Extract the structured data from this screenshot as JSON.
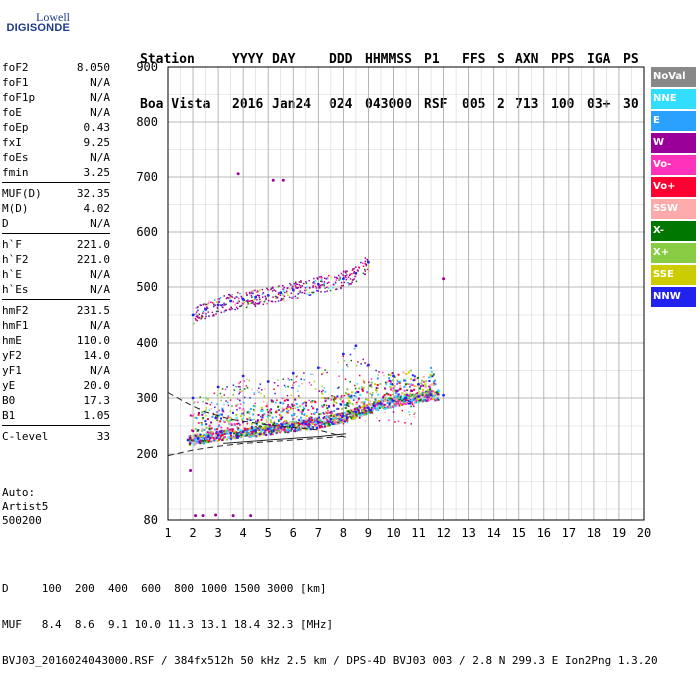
{
  "logo": {
    "top": "Lowell",
    "bottom": "DIGISONDE"
  },
  "header": {
    "row1": [
      "Station",
      "YYYY",
      "DAY",
      "DDD",
      "HHMMSS",
      "P1",
      "FFS",
      "S",
      "AXN",
      "PPS",
      "IGA",
      "PS"
    ],
    "row2": [
      "Boa Vista",
      "2016",
      "Jan24",
      "024",
      "043000",
      "RSF",
      "005",
      "2",
      "713",
      "100",
      "03+",
      "30"
    ]
  },
  "params": {
    "group1": [
      {
        "name": "foF2",
        "value": "8.050"
      },
      {
        "name": "foF1",
        "value": "N/A"
      },
      {
        "name": "foF1p",
        "value": "N/A"
      },
      {
        "name": "foE",
        "value": "N/A"
      },
      {
        "name": "foEp",
        "value": "0.43"
      },
      {
        "name": "fxI",
        "value": "9.25"
      },
      {
        "name": "foEs",
        "value": "N/A"
      },
      {
        "name": "fmin",
        "value": "3.25"
      }
    ],
    "group2": [
      {
        "name": "MUF(D)",
        "value": "32.35"
      },
      {
        "name": "M(D)",
        "value": "4.02"
      },
      {
        "name": "D",
        "value": "N/A"
      }
    ],
    "group3": [
      {
        "name": "h`F",
        "value": "221.0"
      },
      {
        "name": "h`F2",
        "value": "221.0"
      },
      {
        "name": "h`E",
        "value": "N/A"
      },
      {
        "name": "h`Es",
        "value": "N/A"
      }
    ],
    "group4": [
      {
        "name": "hmF2",
        "value": "231.5"
      },
      {
        "name": "hmF1",
        "value": "N/A"
      },
      {
        "name": "hmE",
        "value": "110.0"
      },
      {
        "name": "yF2",
        "value": "14.0"
      },
      {
        "name": "yF1",
        "value": "N/A"
      },
      {
        "name": "yE",
        "value": "20.0"
      },
      {
        "name": "B0",
        "value": "17.3"
      },
      {
        "name": "B1",
        "value": "1.05"
      }
    ],
    "group5": [
      {
        "name": "C-level",
        "value": "33"
      }
    ]
  },
  "auto": {
    "line1": "Auto:",
    "line2": "Artist5",
    "line3": "500200"
  },
  "legend": [
    {
      "label": "NoVal",
      "color": "#888888"
    },
    {
      "label": "NNE",
      "color": "#33ddff"
    },
    {
      "label": "E",
      "color": "#2aa0ff"
    },
    {
      "label": "W",
      "color": "#9a0099"
    },
    {
      "label": "Vo-",
      "color": "#ff33bb"
    },
    {
      "label": "Vo+",
      "color": "#ff0033"
    },
    {
      "label": "SSW",
      "color": "#ffaaaa"
    },
    {
      "label": "X-",
      "color": "#007700"
    },
    {
      "label": "X+",
      "color": "#88cc44"
    },
    {
      "label": "SSE",
      "color": "#cccc00"
    },
    {
      "label": "NNW",
      "color": "#2222ee"
    }
  ],
  "bottom": {
    "line1": "D     100  200  400  600  800 1000 1500 3000 [km]",
    "line2": "MUF   8.4  8.6  9.1 10.0 11.3 13.1 18.4 32.3 [MHz]",
    "line3": "BVJ03_2016024043000.RSF / 384fx512h 50 kHz 2.5 km / DPS-4D BVJ03 003 / 2.8 N 299.3 E Ion2Png 1.3.20"
  },
  "chart_data": {
    "type": "scatter",
    "xlabel": "",
    "ylabel": "",
    "xlim": [
      1,
      20
    ],
    "ylim": [
      80,
      900
    ],
    "x_ticks": [
      1,
      2,
      3,
      4,
      5,
      6,
      7,
      8,
      9,
      10,
      11,
      12,
      13,
      14,
      15,
      16,
      17,
      18,
      19,
      20
    ],
    "y_ticks": [
      80,
      200,
      300,
      400,
      500,
      600,
      700,
      800,
      900
    ],
    "grid": true,
    "legend_position": "right",
    "series": [
      {
        "name": "F2 O-trace (mixed directions)",
        "description_only": false,
        "points": [
          [
            1.8,
            225
          ],
          [
            2.2,
            228
          ],
          [
            2.6,
            231
          ],
          [
            3.0,
            234
          ],
          [
            3.5,
            237
          ],
          [
            4.0,
            240
          ],
          [
            4.5,
            242
          ],
          [
            5.0,
            245
          ],
          [
            5.5,
            248
          ],
          [
            6.0,
            251
          ],
          [
            6.5,
            254
          ],
          [
            7.0,
            257
          ],
          [
            7.5,
            262
          ],
          [
            8.0,
            268
          ],
          [
            8.5,
            275
          ],
          [
            9.0,
            282
          ],
          [
            9.5,
            290
          ],
          [
            10.0,
            295
          ],
          [
            10.5,
            300
          ],
          [
            11.0,
            303
          ],
          [
            11.5,
            306
          ],
          [
            12.0,
            305
          ]
        ]
      },
      {
        "name": "F2 spread echoes (upper)",
        "points": [
          [
            2.0,
            300
          ],
          [
            3.0,
            320
          ],
          [
            4.0,
            340
          ],
          [
            5.0,
            330
          ],
          [
            6.0,
            345
          ],
          [
            7.0,
            355
          ],
          [
            8.0,
            380
          ],
          [
            8.5,
            395
          ],
          [
            9.0,
            360
          ],
          [
            10.0,
            340
          ],
          [
            11.0,
            325
          ]
        ]
      },
      {
        "name": "Multiple-hop trace",
        "points": [
          [
            2.0,
            450
          ],
          [
            2.5,
            460
          ],
          [
            3.0,
            468
          ],
          [
            3.5,
            475
          ],
          [
            4.0,
            478
          ],
          [
            4.5,
            482
          ],
          [
            5.0,
            485
          ],
          [
            5.5,
            490
          ],
          [
            6.0,
            495
          ],
          [
            7.0,
            505
          ],
          [
            8.0,
            515
          ],
          [
            8.5,
            525
          ],
          [
            9.0,
            545
          ]
        ]
      },
      {
        "name": "Isolated echoes",
        "points": [
          [
            2.1,
            88
          ],
          [
            2.4,
            88
          ],
          [
            2.9,
            89
          ],
          [
            3.6,
            88
          ],
          [
            4.3,
            88
          ],
          [
            5.2,
            694
          ],
          [
            5.6,
            694
          ],
          [
            3.8,
            706
          ],
          [
            12.0,
            515
          ],
          [
            1.9,
            170
          ]
        ]
      }
    ],
    "profile_lines": [
      {
        "style": "dashed",
        "points": [
          [
            1,
            310
          ],
          [
            1.8,
            290
          ],
          [
            2.5,
            275
          ],
          [
            3.5,
            262
          ],
          [
            5,
            252
          ],
          [
            7,
            243
          ],
          [
            8.1,
            230
          ]
        ]
      },
      {
        "style": "dashed",
        "points": [
          [
            1,
            197
          ],
          [
            2,
            207
          ],
          [
            3,
            214
          ],
          [
            4,
            219
          ],
          [
            5,
            222
          ],
          [
            6,
            225
          ],
          [
            7,
            228
          ],
          [
            8.1,
            232
          ]
        ]
      },
      {
        "style": "solid",
        "points": [
          [
            3.2,
            219
          ],
          [
            5,
            225
          ],
          [
            7,
            231
          ],
          [
            8.1,
            236
          ]
        ]
      }
    ]
  }
}
